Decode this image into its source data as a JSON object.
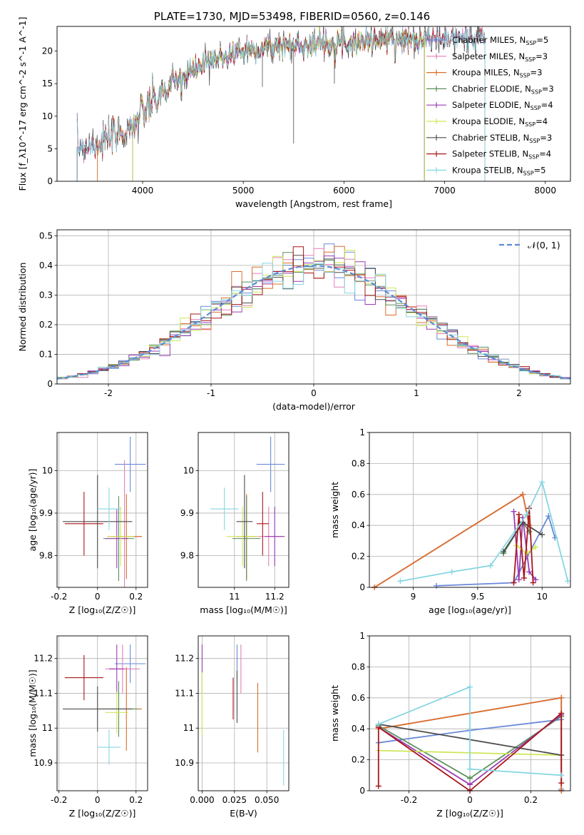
{
  "figure_title": "PLATE=1730, MJD=53498, FIBERID=0560, z=0.146",
  "colors": {
    "chabrier_miles": "#6a89d8",
    "salpeter_miles": "#e47fb7",
    "kroupa_miles": "#d86f2b",
    "chabrier_elodie": "#5b8f5b",
    "salpeter_elodie": "#9b3bb5",
    "kroupa_elodie": "#cde75a",
    "chabrier_stelib": "#4d4d4d",
    "salpeter_stelib": "#a8161a",
    "kroupa_stelib": "#86d6e2",
    "normal": "#5b8bd6"
  },
  "chart_data": [
    {
      "id": "spectrum",
      "type": "line",
      "xlabel": "wavelength [Angstrom, rest frame]",
      "ylabel": "Flux [f_λ10^-17 erg cm^-2 s^-1 A^-1]",
      "xlim": [
        3150,
        8250
      ],
      "ylim": [
        0,
        23.8
      ],
      "xticks": [
        4000,
        5000,
        6000,
        7000,
        8000
      ],
      "yticks": [
        0,
        5,
        10,
        15,
        20
      ],
      "grid": false,
      "legend": "upper-right",
      "continuum": {
        "x": [
          3350,
          3500,
          3700,
          3900,
          4000,
          4200,
          4400,
          4600,
          4800,
          5000,
          5200,
          5400,
          5600,
          5800,
          6000,
          6200,
          6400,
          6600,
          6800,
          7000,
          7200,
          7400
        ],
        "y": [
          5.3,
          5.6,
          6.6,
          8.5,
          10.5,
          13.5,
          16.0,
          17.8,
          19.2,
          20.0,
          20.5,
          20.8,
          21.0,
          21.3,
          21.4,
          21.5,
          21.8,
          21.9,
          22.0,
          22.0,
          22.1,
          22.2
        ]
      },
      "series": [
        {
          "name": "Chabrier MILES, N_SSP=5",
          "color_key": "chabrier_miles",
          "xmin": 3350,
          "xmax": 7400
        },
        {
          "name": "Salpeter MILES, N_SSP=3",
          "color_key": "salpeter_miles",
          "xmin": 3350,
          "xmax": 7400
        },
        {
          "name": "Kroupa MILES, N_SSP=3",
          "color_key": "kroupa_miles",
          "xmin": 3550,
          "xmax": 6800
        },
        {
          "name": "Chabrier ELODIE, N_SSP=3",
          "color_key": "chabrier_elodie",
          "xmin": 3900,
          "xmax": 6800
        },
        {
          "name": "Salpeter ELODIE, N_SSP=4",
          "color_key": "salpeter_elodie",
          "xmin": 3900,
          "xmax": 6800
        },
        {
          "name": "Kroupa ELODIE, N_SSP=4",
          "color_key": "kroupa_elodie",
          "xmin": 3900,
          "xmax": 6800
        },
        {
          "name": "Chabrier STELIB, N_SSP=3",
          "color_key": "chabrier_stelib",
          "xmin": 3350,
          "xmax": 7400
        },
        {
          "name": "Salpeter STELIB, N_SSP=4",
          "color_key": "salpeter_stelib",
          "xmin": 3350,
          "xmax": 7400
        },
        {
          "name": "Kroupa STELIB, N_SSP=5",
          "color_key": "kroupa_stelib",
          "xmin": 3350,
          "xmax": 7400
        }
      ]
    },
    {
      "id": "residuals",
      "type": "line",
      "xlabel": "(data-model)/error",
      "ylabel": "Normed distribution",
      "xlim": [
        -2.5,
        2.5
      ],
      "ylim": [
        0,
        0.52
      ],
      "xticks": [
        -2,
        -1,
        0,
        1,
        2
      ],
      "yticks": [
        0.0,
        0.1,
        0.2,
        0.3,
        0.4,
        0.5
      ],
      "grid": true,
      "legend": "upper-right",
      "normal_label": "𝒩(0, 1)",
      "bin_width": 0.1
    },
    {
      "id": "z_age",
      "type": "scatter",
      "xlabel": "Z [log₁₀(Z/Z☉)]",
      "ylabel": "age  [log₁₀(age/yr)]",
      "xlim": [
        -0.21,
        0.26
      ],
      "ylim": [
        9.725,
        10.09
      ],
      "xticks": [
        -0.2,
        0.0,
        0.2
      ],
      "yticks": [
        9.8,
        9.9,
        10.0
      ],
      "grid": true,
      "points": [
        {
          "c": "chabrier_miles",
          "x": 0.17,
          "y": 10.015,
          "xerr": 0.08,
          "yerr": 0.065
        },
        {
          "c": "salpeter_miles",
          "x": 0.14,
          "y": 9.845,
          "xerr": 0.09,
          "yerr": 0.18
        },
        {
          "c": "kroupa_miles",
          "x": 0.15,
          "y": 9.845,
          "xerr": 0.08,
          "yerr": 0.1
        },
        {
          "c": "chabrier_elodie",
          "x": 0.11,
          "y": 9.84,
          "xerr": 0.08,
          "yerr": 0.1
        },
        {
          "c": "salpeter_elodie",
          "x": 0.1,
          "y": 9.84,
          "xerr": 0.06,
          "yerr": 0.07
        },
        {
          "c": "kroupa_elodie",
          "x": 0.12,
          "y": 9.845,
          "xerr": 0.07,
          "yerr": 0.07
        },
        {
          "c": "chabrier_stelib",
          "x": 0.0,
          "y": 9.88,
          "xerr": 0.18,
          "yerr": 0.11
        },
        {
          "c": "salpeter_stelib",
          "x": -0.07,
          "y": 9.875,
          "xerr": 0.1,
          "yerr": 0.075
        },
        {
          "c": "kroupa_stelib",
          "x": 0.06,
          "y": 9.91,
          "xerr": 0.06,
          "yerr": 0.05
        }
      ]
    },
    {
      "id": "mass_age",
      "type": "scatter",
      "xlabel": "mass [log₁₀(M/M☉)]",
      "ylabel": "",
      "xlim": [
        10.82,
        11.27
      ],
      "ylim": [
        9.725,
        10.09
      ],
      "xticks": [
        11.0,
        11.2
      ],
      "yticks": [
        9.8,
        9.9,
        10.0
      ],
      "grid": true,
      "points": [
        {
          "c": "chabrier_miles",
          "x": 11.18,
          "y": 10.015,
          "xerr": 0.07,
          "yerr": 0.065
        },
        {
          "c": "salpeter_miles",
          "x": 11.17,
          "y": 9.845,
          "xerr": 0.07,
          "yerr": 0.07
        },
        {
          "c": "kroupa_miles",
          "x": 11.06,
          "y": 9.845,
          "xerr": 0.05,
          "yerr": 0.1
        },
        {
          "c": "chabrier_elodie",
          "x": 11.06,
          "y": 9.84,
          "xerr": 0.07,
          "yerr": 0.1
        },
        {
          "c": "salpeter_elodie",
          "x": 11.2,
          "y": 9.845,
          "xerr": 0.05,
          "yerr": 0.07
        },
        {
          "c": "kroupa_elodie",
          "x": 11.04,
          "y": 9.845,
          "xerr": 0.08,
          "yerr": 0.07
        },
        {
          "c": "chabrier_stelib",
          "x": 11.05,
          "y": 9.88,
          "xerr": 0.04,
          "yerr": 0.11
        },
        {
          "c": "salpeter_stelib",
          "x": 11.14,
          "y": 9.875,
          "xerr": 0.03,
          "yerr": 0.075
        },
        {
          "c": "kroupa_stelib",
          "x": 10.95,
          "y": 9.91,
          "xerr": 0.07,
          "yerr": 0.05
        }
      ]
    },
    {
      "id": "age_weight",
      "type": "line",
      "xlabel": "age  [log₁₀(age/yr)]",
      "ylabel": "mass weight",
      "xlim": [
        8.66,
        10.22
      ],
      "ylim": [
        0,
        1.0
      ],
      "xticks": [
        9.0,
        9.5,
        10.0
      ],
      "yticks": [
        0.0,
        0.2,
        0.4,
        0.6,
        0.8,
        1.0
      ],
      "grid": true,
      "series": [
        {
          "c": "chabrier_miles",
          "x": [
            9.18,
            9.78,
            10.05,
            10.1
          ],
          "y": [
            0.01,
            0.03,
            0.46,
            0.32
          ]
        },
        {
          "c": "salpeter_miles",
          "x": [
            8.7,
            9.85,
            9.9
          ],
          "y": [
            0.0,
            0.6,
            0.4
          ]
        },
        {
          "c": "kroupa_miles",
          "x": [
            8.7,
            9.85,
            9.9
          ],
          "y": [
            0.0,
            0.6,
            0.4
          ]
        },
        {
          "c": "chabrier_elodie",
          "x": [
            9.7,
            9.85,
            9.9
          ],
          "y": [
            0.22,
            0.42,
            0.36
          ]
        },
        {
          "c": "salpeter_elodie",
          "x": [
            9.78,
            9.82,
            9.85,
            9.9,
            9.95
          ],
          "y": [
            0.49,
            0.05,
            0.45,
            0.1,
            0.05
          ]
        },
        {
          "c": "kroupa_elodie",
          "x": [
            9.8,
            9.88,
            9.95
          ],
          "y": [
            0.27,
            0.22,
            0.26
          ]
        },
        {
          "c": "chabrier_stelib",
          "x": [
            9.7,
            9.85,
            10.0
          ],
          "y": [
            0.23,
            0.42,
            0.34
          ]
        },
        {
          "c": "salpeter_stelib",
          "x": [
            9.78,
            9.82,
            9.86,
            9.9,
            9.93
          ],
          "y": [
            0.03,
            0.47,
            0.06,
            0.51,
            0.03
          ]
        },
        {
          "c": "kroupa_stelib",
          "x": [
            8.9,
            9.3,
            9.6,
            9.88,
            10.0,
            10.2
          ],
          "y": [
            0.04,
            0.1,
            0.14,
            0.47,
            0.68,
            0.04
          ]
        }
      ]
    },
    {
      "id": "z_mass",
      "type": "scatter",
      "xlabel": "Z [log₁₀(Z/Z☉)]",
      "ylabel": "mass [log₁₀(M/M☉)]",
      "xlim": [
        -0.21,
        0.26
      ],
      "ylim": [
        10.82,
        11.265
      ],
      "xticks": [
        -0.2,
        0.0,
        0.2
      ],
      "yticks": [
        10.9,
        11.0,
        11.1,
        11.2
      ],
      "grid": true,
      "points": [
        {
          "c": "chabrier_miles",
          "x": 0.17,
          "y": 11.185,
          "xerr": 0.08,
          "yerr": 0.055
        },
        {
          "c": "salpeter_miles",
          "x": 0.13,
          "y": 11.17,
          "xerr": 0.09,
          "yerr": 0.07
        },
        {
          "c": "kroupa_miles",
          "x": 0.15,
          "y": 11.055,
          "xerr": 0.08,
          "yerr": 0.12
        },
        {
          "c": "chabrier_elodie",
          "x": 0.11,
          "y": 11.055,
          "xerr": 0.1,
          "yerr": 0.08
        },
        {
          "c": "salpeter_elodie",
          "x": 0.1,
          "y": 11.17,
          "xerr": 0.04,
          "yerr": 0.07
        },
        {
          "c": "kroupa_elodie",
          "x": 0.1,
          "y": 11.045,
          "xerr": 0.06,
          "yerr": 0.06
        },
        {
          "c": "chabrier_stelib",
          "x": 0.0,
          "y": 11.055,
          "xerr": 0.18,
          "yerr": 0.065
        },
        {
          "c": "salpeter_stelib",
          "x": -0.07,
          "y": 11.145,
          "xerr": 0.1,
          "yerr": 0.065
        },
        {
          "c": "kroupa_stelib",
          "x": 0.06,
          "y": 10.945,
          "xerr": 0.06,
          "yerr": 0.05
        }
      ]
    },
    {
      "id": "ebv_mass",
      "type": "scatter",
      "xlabel": "E(B-V)",
      "ylabel": "",
      "xlim": [
        -0.003,
        0.067
      ],
      "ylim": [
        10.82,
        11.265
      ],
      "xticks": [
        0.0,
        0.025,
        0.05
      ],
      "xticklabels": [
        "0.000",
        "0.025",
        "0.050"
      ],
      "yticks": [
        10.9,
        11.0,
        11.1,
        11.2
      ],
      "grid": true,
      "points": [
        {
          "c": "chabrier_miles",
          "x": 0.027,
          "y": 11.185,
          "yerr": 0.055
        },
        {
          "c": "salpeter_miles",
          "x": 0.03,
          "y": 11.17,
          "yerr": 0.07
        },
        {
          "c": "kroupa_miles",
          "x": 0.043,
          "y": 11.03,
          "yerr": 0.1
        },
        {
          "c": "chabrier_elodie",
          "x": 0.0,
          "y": 11.07,
          "yerr": 0.08
        },
        {
          "c": "salpeter_elodie",
          "x": 0.0,
          "y": 11.17,
          "yerr": 0.07
        },
        {
          "c": "kroupa_elodie",
          "x": 0.0,
          "y": 11.07,
          "yerr": 0.09
        },
        {
          "c": "chabrier_stelib",
          "x": 0.027,
          "y": 11.09,
          "yerr": 0.075
        },
        {
          "c": "salpeter_stelib",
          "x": 0.024,
          "y": 11.085,
          "yerr": 0.06
        },
        {
          "c": "kroupa_stelib",
          "x": 0.063,
          "y": 10.915,
          "yerr": 0.08
        }
      ]
    },
    {
      "id": "z_weight",
      "type": "line",
      "xlabel": "Z [log₁₀(Z/Z☉)]",
      "ylabel": "mass weight",
      "xlim": [
        -0.33,
        0.33
      ],
      "ylim": [
        0,
        1.0
      ],
      "xticks": [
        -0.2,
        0.0,
        0.2
      ],
      "yticks": [
        0.0,
        0.2,
        0.4,
        0.6,
        0.8,
        1.0
      ],
      "grid": true,
      "series": [
        {
          "c": "chabrier_miles",
          "x": [
            -0.3,
            0.0,
            0.3,
            0.3
          ],
          "y": [
            0.31,
            0.39,
            0.46,
            0.01
          ]
        },
        {
          "c": "salpeter_miles",
          "x": [
            -0.3,
            0.3,
            0.3
          ],
          "y": [
            0.4,
            0.6,
            0.0
          ]
        },
        {
          "c": "kroupa_miles",
          "x": [
            -0.3,
            0.3,
            0.3
          ],
          "y": [
            0.4,
            0.6,
            0.0
          ]
        },
        {
          "c": "chabrier_elodie",
          "x": [
            -0.3,
            0.0,
            0.3
          ],
          "y": [
            0.42,
            0.08,
            0.48
          ]
        },
        {
          "c": "salpeter_elodie",
          "x": [
            -0.3,
            0.0,
            0.3
          ],
          "y": [
            0.41,
            0.04,
            0.49
          ]
        },
        {
          "c": "kroupa_elodie",
          "x": [
            -0.3,
            0.3
          ],
          "y": [
            0.26,
            0.23
          ]
        },
        {
          "c": "chabrier_stelib",
          "x": [
            -0.3,
            0.3
          ],
          "y": [
            0.43,
            0.23
          ]
        },
        {
          "c": "salpeter_stelib",
          "x": [
            -0.3,
            -0.3,
            0.0,
            0.3,
            0.3
          ],
          "y": [
            0.03,
            0.41,
            0.0,
            0.5,
            0.05
          ]
        },
        {
          "c": "kroupa_stelib",
          "x": [
            -0.3,
            0.0,
            0.0,
            0.3
          ],
          "y": [
            0.43,
            0.67,
            0.14,
            0.1
          ]
        }
      ]
    }
  ]
}
